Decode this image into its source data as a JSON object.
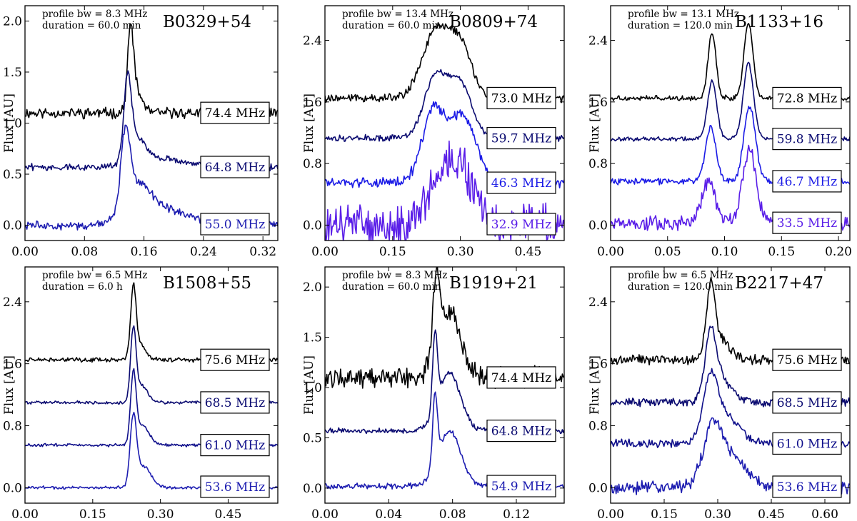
{
  "chart_data": [
    {
      "type": "line",
      "title": "B0329+54",
      "info": [
        "profile bw = 8.3 MHz",
        "duration = 60.0 min"
      ],
      "ylabel": "Flux [AU]",
      "xlim": [
        0,
        0.34
      ],
      "ylim": [
        -0.15,
        2.15
      ],
      "xticks": [
        0.0,
        0.08,
        0.16,
        0.24,
        0.32
      ],
      "xtick_labels": [
        "0.00",
        "0.08",
        "0.16",
        "0.24",
        "0.32"
      ],
      "yticks": [
        0.0,
        0.5,
        1.0,
        1.5,
        2.0
      ],
      "ytick_labels": [
        "0.0",
        "0.5",
        "1.0",
        "1.5",
        "2.0"
      ],
      "series": [
        {
          "name": "74.4 MHz",
          "color": "#000000",
          "baseline": 1.1,
          "peak": 2.07,
          "noise": 0.04,
          "components": [
            [
              0.142,
              0.75,
              0.004
            ],
            [
              0.15,
              0.2,
              0.008
            ]
          ]
        },
        {
          "name": "64.8 MHz",
          "color": "#0a0a70",
          "baseline": 0.57,
          "peak": 1.55,
          "noise": 0.025,
          "components": [
            [
              0.138,
              0.75,
              0.005
            ],
            [
              0.15,
              0.25,
              0.012
            ],
            [
              0.185,
              0.08,
              0.03
            ]
          ]
        },
        {
          "name": "55.0 MHz",
          "color": "#1c1cb0",
          "baseline": 0.0,
          "peak": 0.98,
          "noise": 0.03,
          "components": [
            [
              0.135,
              0.7,
              0.006
            ],
            [
              0.15,
              0.35,
              0.018
            ],
            [
              0.19,
              0.15,
              0.03
            ]
          ]
        }
      ]
    },
    {
      "type": "line",
      "title": "B0809+74",
      "info": [
        "profile bw = 13.4 MHz",
        "duration = 60.0 min"
      ],
      "ylabel": "Flux [AU]",
      "xlim": [
        0,
        0.53
      ],
      "ylim": [
        -0.2,
        2.85
      ],
      "xticks": [
        0.0,
        0.15,
        0.3,
        0.45
      ],
      "xtick_labels": [
        "0.00",
        "0.15",
        "0.30",
        "0.45"
      ],
      "yticks": [
        0.0,
        0.8,
        1.6,
        2.4
      ],
      "ytick_labels": [
        "0.0",
        "0.8",
        "1.6",
        "2.4"
      ],
      "series": [
        {
          "name": "73.0 MHz",
          "color": "#000000",
          "baseline": 1.65,
          "peak": 2.6,
          "noise": 0.04,
          "components": [
            [
              0.245,
              0.85,
              0.03
            ],
            [
              0.3,
              0.65,
              0.025
            ]
          ]
        },
        {
          "name": "59.7 MHz",
          "color": "#0a0a70",
          "baseline": 1.13,
          "peak": 2.0,
          "noise": 0.03,
          "components": [
            [
              0.245,
              0.8,
              0.025
            ],
            [
              0.3,
              0.7,
              0.025
            ]
          ]
        },
        {
          "name": "46.3 MHz",
          "color": "#1a1ae6",
          "baseline": 0.55,
          "peak": 1.55,
          "noise": 0.05,
          "components": [
            [
              0.24,
              0.9,
              0.025
            ],
            [
              0.305,
              0.85,
              0.03
            ]
          ]
        },
        {
          "name": "32.9 MHz",
          "color": "#5a1ee8",
          "baseline": 0.0,
          "peak": 0.97,
          "noise": 0.2,
          "components": [
            [
              0.25,
              0.45,
              0.03
            ],
            [
              0.3,
              0.7,
              0.03
            ]
          ]
        }
      ]
    },
    {
      "type": "line",
      "title": "B1133+16",
      "info": [
        "profile bw = 13.1 MHz",
        "duration = 120.0 min"
      ],
      "ylabel": "Flux [AU]",
      "xlim": [
        0,
        0.21
      ],
      "ylim": [
        -0.2,
        2.85
      ],
      "xticks": [
        0.0,
        0.05,
        0.1,
        0.15,
        0.2
      ],
      "xtick_labels": [
        "0.00",
        "0.05",
        "0.10",
        "0.15",
        "0.20"
      ],
      "yticks": [
        0.0,
        0.8,
        1.6,
        2.4
      ],
      "ytick_labels": [
        "0.0",
        "0.8",
        "1.6",
        "2.4"
      ],
      "series": [
        {
          "name": "72.8 MHz",
          "color": "#000000",
          "baseline": 1.65,
          "peak": 2.62,
          "noise": 0.025,
          "components": [
            [
              0.089,
              0.85,
              0.0035
            ],
            [
              0.121,
              0.97,
              0.004
            ]
          ]
        },
        {
          "name": "59.8 MHz",
          "color": "#0a0a70",
          "baseline": 1.12,
          "peak": 2.1,
          "noise": 0.02,
          "components": [
            [
              0.089,
              0.75,
              0.004
            ],
            [
              0.121,
              0.98,
              0.0045
            ]
          ]
        },
        {
          "name": "46.7 MHz",
          "color": "#1a1ae6",
          "baseline": 0.57,
          "peak": 1.55,
          "noise": 0.03,
          "components": [
            [
              0.088,
              0.7,
              0.0045
            ],
            [
              0.122,
              0.98,
              0.005
            ]
          ]
        },
        {
          "name": "33.5 MHz",
          "color": "#5a1ee8",
          "baseline": 0.03,
          "peak": 1.02,
          "noise": 0.07,
          "components": [
            [
              0.086,
              0.55,
              0.006
            ],
            [
              0.122,
              0.95,
              0.006
            ]
          ]
        }
      ]
    },
    {
      "type": "line",
      "title": "B1508+55",
      "info": [
        "profile bw = 6.5 MHz",
        "duration = 6.0 h"
      ],
      "ylabel": "Flux [AU]",
      "xlim": [
        0,
        0.56
      ],
      "ylim": [
        -0.2,
        2.85
      ],
      "xticks": [
        0.0,
        0.15,
        0.3,
        0.45
      ],
      "xtick_labels": [
        "0.00",
        "0.15",
        "0.30",
        "0.45"
      ],
      "yticks": [
        0.0,
        0.8,
        1.6,
        2.4
      ],
      "ytick_labels": [
        "0.0",
        "0.8",
        "1.6",
        "2.4"
      ],
      "series": [
        {
          "name": "75.6 MHz",
          "color": "#000000",
          "baseline": 1.65,
          "peak": 2.65,
          "noise": 0.02,
          "components": [
            [
              0.24,
              0.9,
              0.006
            ],
            [
              0.255,
              0.2,
              0.012
            ]
          ]
        },
        {
          "name": "68.5 MHz",
          "color": "#0a0a70",
          "baseline": 1.1,
          "peak": 2.1,
          "noise": 0.015,
          "components": [
            [
              0.24,
              0.9,
              0.006
            ],
            [
              0.258,
              0.22,
              0.014
            ]
          ]
        },
        {
          "name": "61.0 MHz",
          "color": "#0e0e8a",
          "baseline": 0.55,
          "peak": 1.55,
          "noise": 0.015,
          "components": [
            [
              0.24,
              0.88,
              0.006
            ],
            [
              0.26,
              0.25,
              0.015
            ]
          ]
        },
        {
          "name": "53.6 MHz",
          "color": "#1c1cb0",
          "baseline": 0.0,
          "peak": 1.0,
          "noise": 0.015,
          "components": [
            [
              0.24,
              0.85,
              0.007
            ],
            [
              0.262,
              0.28,
              0.017
            ]
          ]
        }
      ]
    },
    {
      "type": "line",
      "title": "B1919+21",
      "info": [
        "profile bw = 8.3 MHz",
        "duration = 60.0 min"
      ],
      "ylabel": "Flux [AU]",
      "xlim": [
        0,
        0.15
      ],
      "ylim": [
        -0.15,
        2.2
      ],
      "xticks": [
        0.0,
        0.04,
        0.08,
        0.12
      ],
      "xtick_labels": [
        "0.00",
        "0.04",
        "0.08",
        "0.12"
      ],
      "yticks": [
        0.0,
        0.5,
        1.0,
        1.5,
        2.0
      ],
      "ytick_labels": [
        "0.0",
        "0.5",
        "1.0",
        "1.5",
        "2.0"
      ],
      "series": [
        {
          "name": "74.4 MHz",
          "color": "#000000",
          "baseline": 1.1,
          "peak": 2.08,
          "noise": 0.08,
          "components": [
            [
              0.07,
              0.8,
              0.002
            ],
            [
              0.078,
              0.65,
              0.007
            ]
          ]
        },
        {
          "name": "64.8 MHz",
          "color": "#0a0a70",
          "baseline": 0.57,
          "peak": 1.55,
          "noise": 0.02,
          "components": [
            [
              0.069,
              0.75,
              0.0015
            ],
            [
              0.078,
              0.58,
              0.007
            ]
          ]
        },
        {
          "name": "54.9 MHz",
          "color": "#1c1cb0",
          "baseline": 0.02,
          "peak": 1.0,
          "noise": 0.02,
          "components": [
            [
              0.069,
              0.7,
              0.0015
            ],
            [
              0.078,
              0.55,
              0.007
            ]
          ]
        }
      ]
    },
    {
      "type": "line",
      "title": "B2217+47",
      "info": [
        "profile bw = 6.5 MHz",
        "duration = 120.0 min"
      ],
      "ylabel": "Flux [AU]",
      "xlim": [
        0,
        0.67
      ],
      "ylim": [
        -0.2,
        2.85
      ],
      "xticks": [
        0.0,
        0.15,
        0.3,
        0.45,
        0.6
      ],
      "xtick_labels": [
        "0.00",
        "0.15",
        "0.30",
        "0.45",
        "0.60"
      ],
      "yticks": [
        0.0,
        0.8,
        1.6,
        2.4
      ],
      "ytick_labels": [
        "0.0",
        "0.8",
        "1.6",
        "2.4"
      ],
      "series": [
        {
          "name": "75.6 MHz",
          "color": "#000000",
          "baseline": 1.65,
          "peak": 2.6,
          "noise": 0.05,
          "components": [
            [
              0.28,
              0.9,
              0.012
            ],
            [
              0.31,
              0.25,
              0.025
            ]
          ]
        },
        {
          "name": "68.5 MHz",
          "color": "#0a0a70",
          "baseline": 1.1,
          "peak": 2.1,
          "noise": 0.04,
          "components": [
            [
              0.28,
              0.8,
              0.015
            ],
            [
              0.31,
              0.3,
              0.03
            ]
          ]
        },
        {
          "name": "61.0 MHz",
          "color": "#0e0e8a",
          "baseline": 0.57,
          "peak": 1.55,
          "noise": 0.04,
          "components": [
            [
              0.28,
              0.7,
              0.02
            ],
            [
              0.32,
              0.35,
              0.04
            ]
          ]
        },
        {
          "name": "53.6 MHz",
          "color": "#1c1cb0",
          "baseline": 0.0,
          "peak": 1.0,
          "noise": 0.06,
          "components": [
            [
              0.285,
              0.6,
              0.025
            ],
            [
              0.33,
              0.4,
              0.05
            ]
          ]
        }
      ]
    }
  ]
}
